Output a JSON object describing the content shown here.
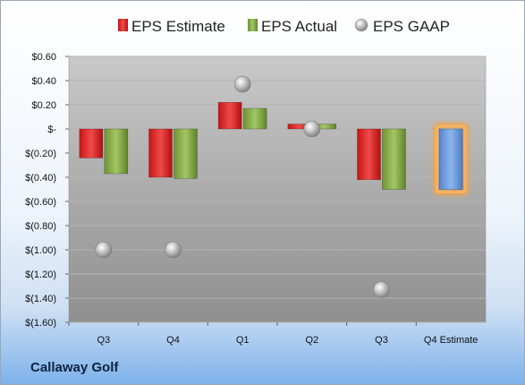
{
  "company": "Callaway Golf",
  "chart_data": {
    "type": "bar",
    "categories": [
      "Q3",
      "Q4",
      "Q1",
      "Q2",
      "Q3",
      "Q4 Estimate"
    ],
    "series": [
      {
        "name": "EPS Estimate",
        "kind": "bar",
        "color": "#e21e1e",
        "values": [
          -0.24,
          -0.4,
          0.22,
          0.04,
          -0.42,
          null
        ]
      },
      {
        "name": "EPS Actual",
        "kind": "bar",
        "color": "#8cb04a",
        "values": [
          -0.37,
          -0.41,
          0.17,
          0.04,
          -0.5,
          null
        ]
      },
      {
        "name": "EPS GAAP",
        "kind": "marker",
        "color": "#a8a8a8",
        "values": [
          -1.0,
          -1.0,
          0.37,
          0.0,
          -1.33,
          null
        ]
      },
      {
        "name": "Q4 Estimate",
        "kind": "highlight-bar",
        "color": "#6f9fe0",
        "values": [
          null,
          null,
          null,
          null,
          null,
          -0.5
        ]
      }
    ],
    "yTickLabels": [
      "$0.60",
      "$0.40",
      "$0.20",
      "$-",
      "$(0.20)",
      "$(0.40)",
      "$(0.60)",
      "$(0.80)",
      "$(1.00)",
      "$(1.20)",
      "$(1.40)",
      "$(1.60)"
    ],
    "yTickValues": [
      0.6,
      0.4,
      0.2,
      0,
      -0.2,
      -0.4,
      -0.6,
      -0.8,
      -1.0,
      -1.2,
      -1.4,
      -1.6
    ],
    "ylim": [
      -1.6,
      0.6
    ],
    "grid": true,
    "legend": "top-center"
  }
}
